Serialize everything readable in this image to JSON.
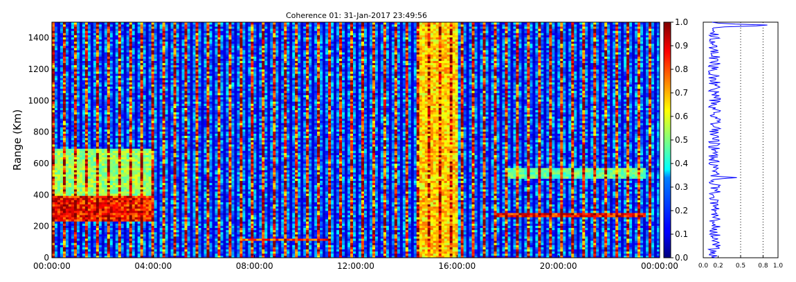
{
  "chart_data": [
    {
      "type": "heatmap",
      "title": "Coherence 01: 31-Jan-2017 23:49:56",
      "xlabel": "",
      "ylabel": "Range (Km)",
      "x_ticks": [
        "00:00:00",
        "04:00:00",
        "08:00:00",
        "12:00:00",
        "16:00:00",
        "20:00:00",
        "00:00:00"
      ],
      "x_range_hours": [
        0,
        24
      ],
      "y_ticks": [
        0,
        200,
        400,
        600,
        800,
        1000,
        1200,
        1400
      ],
      "ylim": [
        0,
        1500
      ],
      "colorbar": {
        "colormap": "jet",
        "range": [
          0.0,
          1.0
        ],
        "ticks": [
          "0.0",
          "0.1",
          "0.2",
          "0.3",
          "0.4",
          "0.5",
          "0.6",
          "0.7",
          "0.8",
          "0.9",
          "1.0"
        ]
      },
      "features": [
        {
          "desc": "high coherence band",
          "time_hours": [
            0,
            4
          ],
          "range_km": [
            230,
            400
          ],
          "value": 0.9
        },
        {
          "desc": "moderate coherence",
          "time_hours": [
            0,
            4
          ],
          "range_km": [
            400,
            700
          ],
          "value": 0.55
        },
        {
          "desc": "high coherence block",
          "time_hours": [
            14.5,
            16
          ],
          "range_km": [
            0,
            1500
          ],
          "value": 0.7
        },
        {
          "desc": "thin layer",
          "time_hours": [
            17.5,
            23.5
          ],
          "range_km": [
            265,
            285
          ],
          "value": 0.9
        },
        {
          "desc": "thin layer",
          "time_hours": [
            7.5,
            11
          ],
          "range_km": [
            105,
            125
          ],
          "value": 0.85
        },
        {
          "desc": "moderate layer",
          "time_hours": [
            18,
            23.5
          ],
          "range_km": [
            500,
            570
          ],
          "value": 0.5
        }
      ]
    },
    {
      "type": "line",
      "title": "",
      "xlabel": "",
      "ylabel": "",
      "x_ticks": [
        "0.0",
        "0.2",
        "0.5",
        "0.8",
        "1.0"
      ],
      "xlim": [
        0,
        1
      ],
      "ylim": [
        0,
        1500
      ],
      "grid_x": [
        0.5,
        0.8
      ],
      "peaks": [
        {
          "range_km": 260,
          "value": 0.15
        },
        {
          "range_km": 510,
          "value": 0.45
        },
        {
          "range_km": 570,
          "value": 0.2
        },
        {
          "range_km": 1480,
          "value": 1.0
        }
      ],
      "baseline": 0.15
    }
  ],
  "colors": {
    "line": "#0000ff",
    "axis": "#000000"
  }
}
